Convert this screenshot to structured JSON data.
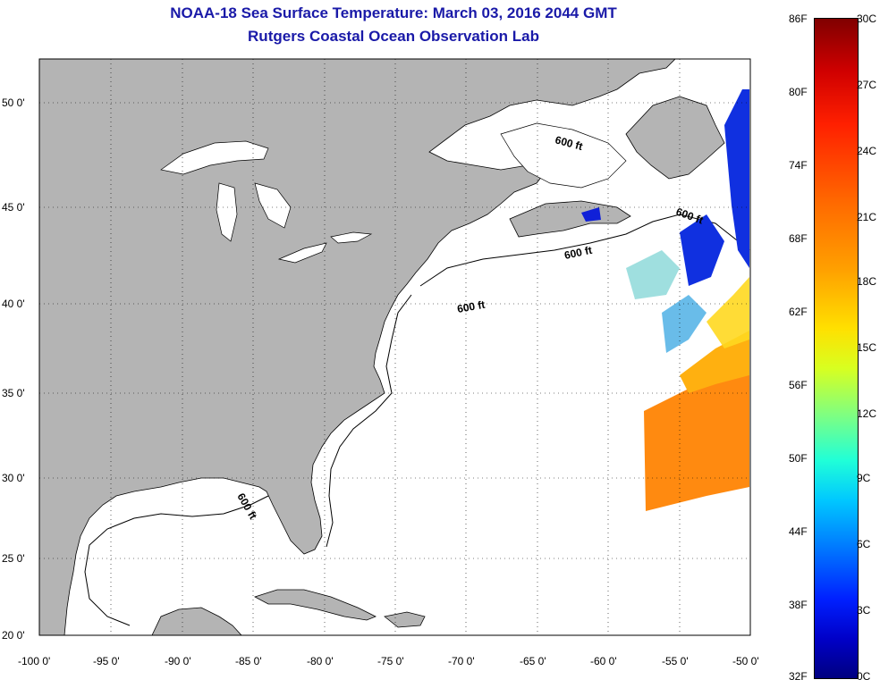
{
  "title": {
    "line1": "NOAA-18 Sea Surface Temperature:  March 03, 2016 2044 GMT",
    "line2": "Rutgers Coastal Ocean Observation Lab"
  },
  "map": {
    "lon_labels": [
      "-100 0'",
      "-95 0'",
      "-90 0'",
      "-85 0'",
      "-80 0'",
      "-75 0'",
      "-70 0'",
      "-65 0'",
      "-60 0'",
      "-55 0'",
      "-50 0'"
    ],
    "lat_labels": [
      "50 0'",
      "45 0'",
      "40 0'",
      "35 0'",
      "30 0'",
      "25 0'",
      "20 0'"
    ],
    "contour_label": "600 ft",
    "land_color": "#b4b4b4",
    "ocean_color": "#ffffff"
  },
  "colorbar": {
    "fahrenheit": [
      "86F",
      "80F",
      "74F",
      "68F",
      "62F",
      "56F",
      "50F",
      "44F",
      "38F",
      "32F"
    ],
    "celsius": [
      "30C",
      "27C",
      "24C",
      "21C",
      "18C",
      "15C",
      "12C",
      "9C",
      "6C",
      "3C",
      "0C"
    ]
  }
}
